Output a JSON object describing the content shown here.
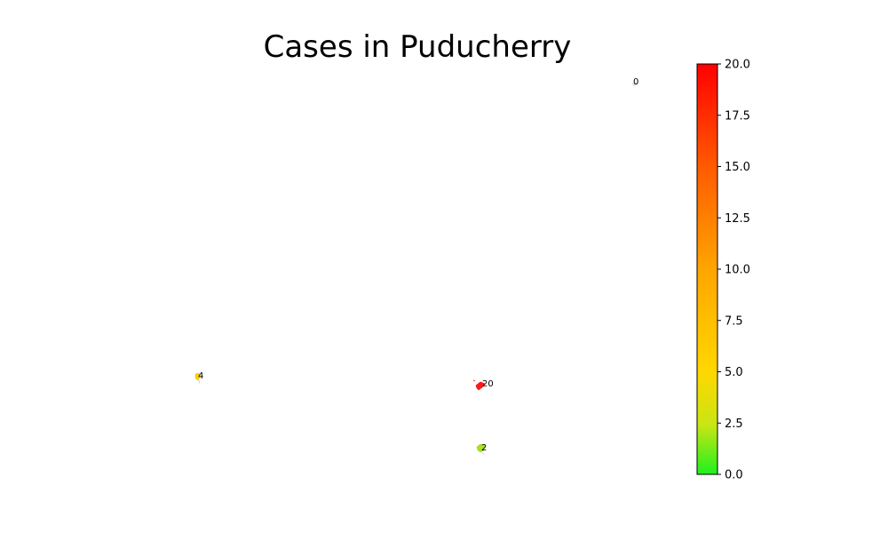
{
  "chart_data": {
    "type": "choropleth",
    "title": "Cases in Puducherry",
    "colormap": [
      "#1ef01e",
      "#ffd700",
      "#ff8c00",
      "#ff0000"
    ],
    "colorbar": {
      "min": 0.0,
      "max": 20.0,
      "ticks": [
        "0.0",
        "2.5",
        "5.0",
        "7.5",
        "10.0",
        "12.5",
        "15.0",
        "17.5",
        "20.0"
      ],
      "placement": "right"
    },
    "regions": [
      {
        "label": "0",
        "value": 0,
        "color": "#e8e8e8"
      },
      {
        "label": "4",
        "value": 4,
        "color": "#ffd000"
      },
      {
        "label": "20",
        "value": 20,
        "color": "#ff0000"
      },
      {
        "label": "2",
        "value": 2,
        "color": "#a8e21e"
      }
    ]
  }
}
